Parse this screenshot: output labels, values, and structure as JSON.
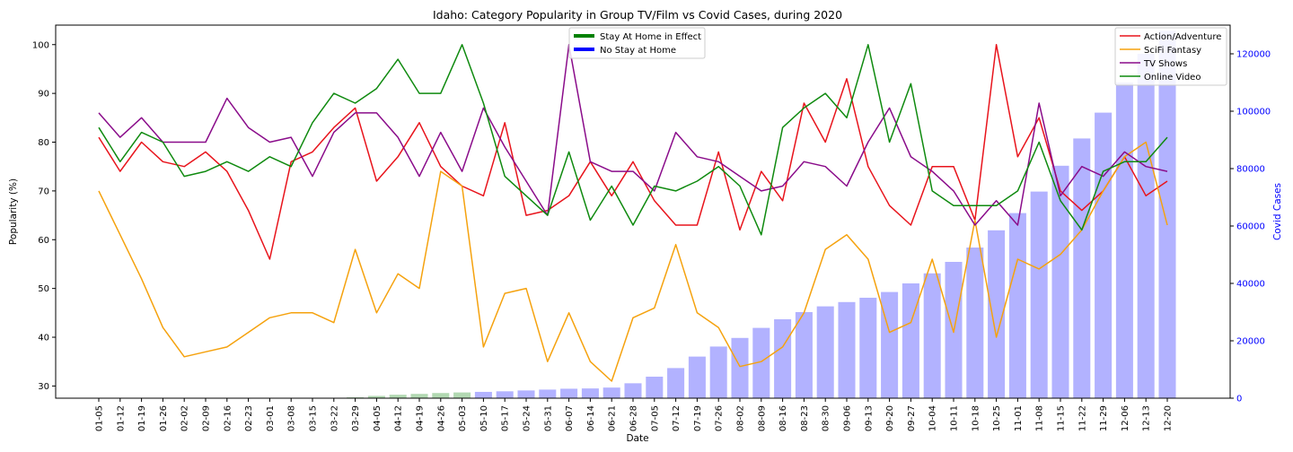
{
  "chart_data": {
    "type": "line+bar",
    "title": "Idaho: Category Popularity in Group TV/Film vs Covid Cases, during 2020",
    "xlabel": "Date",
    "ylabel": "Popularity (%)",
    "y2label": "Covid Cases",
    "ylim": [
      27.5,
      104
    ],
    "y2lim": [
      0,
      130000
    ],
    "yticks": [
      30,
      40,
      50,
      60,
      70,
      80,
      90,
      100
    ],
    "y2ticks": [
      0,
      20000,
      40000,
      60000,
      80000,
      100000,
      120000
    ],
    "categories": [
      "01-05",
      "01-12",
      "01-19",
      "01-26",
      "02-02",
      "02-09",
      "02-16",
      "02-23",
      "03-01",
      "03-08",
      "03-15",
      "03-22",
      "03-29",
      "04-05",
      "04-12",
      "04-19",
      "04-26",
      "05-03",
      "05-10",
      "05-17",
      "05-24",
      "05-31",
      "06-07",
      "06-14",
      "06-21",
      "06-28",
      "07-05",
      "07-12",
      "07-19",
      "07-26",
      "08-02",
      "08-09",
      "08-16",
      "08-23",
      "08-30",
      "09-06",
      "09-13",
      "09-20",
      "09-27",
      "10-04",
      "10-11",
      "10-18",
      "10-25",
      "11-01",
      "11-08",
      "11-15",
      "11-22",
      "11-29",
      "12-06",
      "12-13",
      "12-20"
    ],
    "series": [
      {
        "name": "Action/Adventure",
        "color": "#e8141c",
        "values": [
          81,
          74,
          80,
          76,
          75,
          78,
          74,
          66,
          56,
          76,
          78,
          83,
          87,
          72,
          77,
          84,
          75,
          71,
          69,
          84,
          65,
          66,
          69,
          76,
          69,
          76,
          68,
          63,
          63,
          78,
          62,
          74,
          68,
          88,
          80,
          93,
          75,
          67,
          63,
          75,
          75,
          64,
          100,
          77,
          85,
          70,
          66,
          70,
          77,
          69,
          72
        ]
      },
      {
        "name": "SciFi Fantasy",
        "color": "#f5a20e",
        "values": [
          70,
          61,
          52,
          42,
          36,
          37,
          38,
          41,
          44,
          45,
          45,
          43,
          58,
          45,
          53,
          50,
          74,
          71,
          38,
          49,
          50,
          35,
          45,
          35,
          31,
          44,
          46,
          59,
          45,
          42,
          34,
          35,
          38,
          45,
          58,
          61,
          56,
          41,
          43,
          56,
          41,
          64,
          40,
          56,
          54,
          57,
          62,
          70,
          77,
          80,
          63
        ]
      },
      {
        "name": "TV Shows",
        "color": "#8a0c8a",
        "values": [
          86,
          81,
          85,
          80,
          80,
          80,
          89,
          83,
          80,
          81,
          73,
          82,
          86,
          86,
          81,
          73,
          82,
          74,
          87,
          79,
          72,
          65,
          100,
          76,
          74,
          74,
          70,
          82,
          77,
          76,
          73,
          70,
          71,
          76,
          75,
          71,
          80,
          87,
          77,
          74,
          70,
          63,
          68,
          63,
          88,
          69,
          75,
          73,
          78,
          75,
          74
        ]
      },
      {
        "name": "Online Video",
        "color": "#0f8a0f",
        "values": [
          83,
          76,
          82,
          80,
          73,
          74,
          76,
          74,
          77,
          75,
          84,
          90,
          88,
          91,
          97,
          90,
          90,
          100,
          88,
          73,
          69,
          65,
          78,
          64,
          71,
          63,
          71,
          70,
          72,
          75,
          71,
          61,
          83,
          87,
          90,
          85,
          100,
          80,
          92,
          70,
          67,
          67,
          67,
          70,
          80,
          68,
          62,
          74,
          76,
          76,
          81
        ]
      }
    ],
    "bars": {
      "name": "Covid Cases",
      "values": [
        0,
        0,
        0,
        0,
        0,
        0,
        0,
        0,
        0,
        0,
        0,
        100,
        300,
        800,
        1200,
        1500,
        1800,
        2000,
        2200,
        2400,
        2700,
        3000,
        3300,
        3400,
        3700,
        5200,
        7500,
        10500,
        14500,
        18000,
        21000,
        24500,
        27500,
        30000,
        32000,
        33500,
        35000,
        37000,
        40000,
        43500,
        47500,
        52500,
        58500,
        64500,
        72000,
        81000,
        90500,
        99500,
        110000,
        120000,
        128000
      ],
      "stay_home_range": [
        12,
        17
      ]
    },
    "legend_left": [
      {
        "label": "Stay At Home in Effect",
        "color": "#008000"
      },
      {
        "label": "No Stay at Home",
        "color": "#0000ff"
      }
    ],
    "legend_right": [
      "Action/Adventure",
      "SciFi Fantasy",
      "TV Shows",
      "Online Video"
    ]
  }
}
